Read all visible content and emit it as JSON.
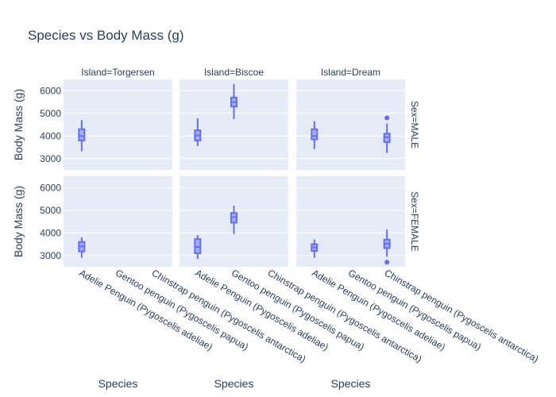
{
  "chart_data": {
    "type": "box",
    "title": "Species vs Body Mass (g)",
    "xlabel": "Species",
    "ylabel": "Body Mass (g)",
    "ylim": [
      2500,
      6500
    ],
    "yticks": [
      3000,
      4000,
      5000,
      6000
    ],
    "grid": true,
    "color": "#636efa",
    "categories": [
      "Adelie Penguin (Pygoscelis adeliae)",
      "Gentoo penguin (Pygoscelis papua)",
      "Chinstrap penguin (Pygoscelis antarctica)"
    ],
    "columns": [
      {
        "label": "Island=Torgersen"
      },
      {
        "label": "Island=Biscoe"
      },
      {
        "label": "Island=Dream"
      }
    ],
    "rows": [
      {
        "label": "Sex=MALE"
      },
      {
        "label": "Sex=FEMALE"
      }
    ],
    "boxes": [
      {
        "row": 0,
        "col": 0,
        "category": 0,
        "min": 3325,
        "q1": 3800,
        "median": 4000,
        "q3": 4300,
        "max": 4700,
        "outliers": []
      },
      {
        "row": 0,
        "col": 1,
        "category": 0,
        "min": 3550,
        "q1": 3800,
        "median": 4025,
        "q3": 4250,
        "max": 4775,
        "outliers": []
      },
      {
        "row": 0,
        "col": 1,
        "category": 1,
        "min": 4750,
        "q1": 5300,
        "median": 5500,
        "q3": 5700,
        "max": 6300,
        "outliers": []
      },
      {
        "row": 0,
        "col": 2,
        "category": 0,
        "min": 3425,
        "q1": 3850,
        "median": 4000,
        "q3": 4300,
        "max": 4650,
        "outliers": []
      },
      {
        "row": 0,
        "col": 2,
        "category": 2,
        "min": 3250,
        "q1": 3725,
        "median": 3950,
        "q3": 4100,
        "max": 4550,
        "outliers": [
          4800
        ]
      },
      {
        "row": 1,
        "col": 0,
        "category": 0,
        "min": 2900,
        "q1": 3175,
        "median": 3400,
        "q3": 3600,
        "max": 3800,
        "outliers": []
      },
      {
        "row": 1,
        "col": 1,
        "category": 0,
        "min": 2850,
        "q1": 3100,
        "median": 3375,
        "q3": 3725,
        "max": 3900,
        "outliers": []
      },
      {
        "row": 1,
        "col": 1,
        "category": 1,
        "min": 3950,
        "q1": 4450,
        "median": 4700,
        "q3": 4875,
        "max": 5200,
        "outliers": []
      },
      {
        "row": 1,
        "col": 2,
        "category": 0,
        "min": 2900,
        "q1": 3200,
        "median": 3350,
        "q3": 3500,
        "max": 3700,
        "outliers": []
      },
      {
        "row": 1,
        "col": 2,
        "category": 2,
        "min": 2950,
        "q1": 3325,
        "median": 3525,
        "q3": 3700,
        "max": 4150,
        "outliers": [
          2700
        ]
      }
    ]
  }
}
